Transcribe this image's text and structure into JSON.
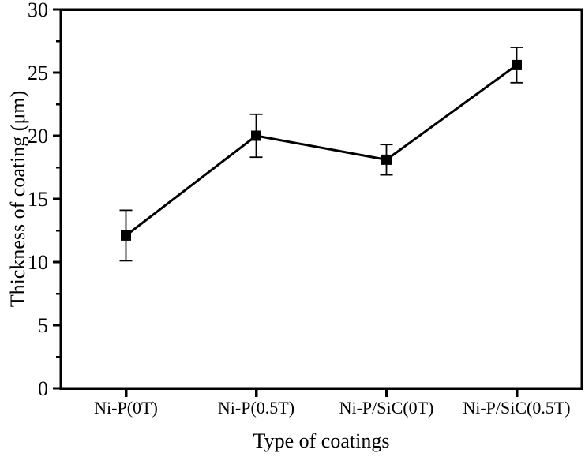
{
  "figure": {
    "background": "#ffffff",
    "foreground": "#000000"
  },
  "chart_data": {
    "type": "line",
    "title": "",
    "categories": [
      "Ni-P(0T)",
      "Ni-P(0.5T)",
      "Ni-P/SiC(0T)",
      "Ni-P/SiC(0.5T)"
    ],
    "series": [
      {
        "name": "Thickness of coating",
        "values": [
          12.1,
          20.0,
          18.1,
          25.6
        ],
        "error_bars": [
          2.0,
          1.7,
          1.2,
          1.4
        ],
        "color": "#000000",
        "marker": "filled-square"
      }
    ],
    "xlabel": "Type of coatings",
    "ylabel": "Thickness of coating (μm)",
    "ylim": [
      0,
      30
    ],
    "yticks": [
      0,
      5,
      10,
      15,
      20,
      25,
      30
    ],
    "yminor_ticks": [
      2.5,
      7.5,
      12.5,
      17.5,
      22.5,
      27.5
    ],
    "ytick_labels": [
      "0",
      "5",
      "10",
      "15",
      "20",
      "25",
      "30"
    ],
    "grid": false,
    "legend": "none",
    "frame": "full-box"
  }
}
